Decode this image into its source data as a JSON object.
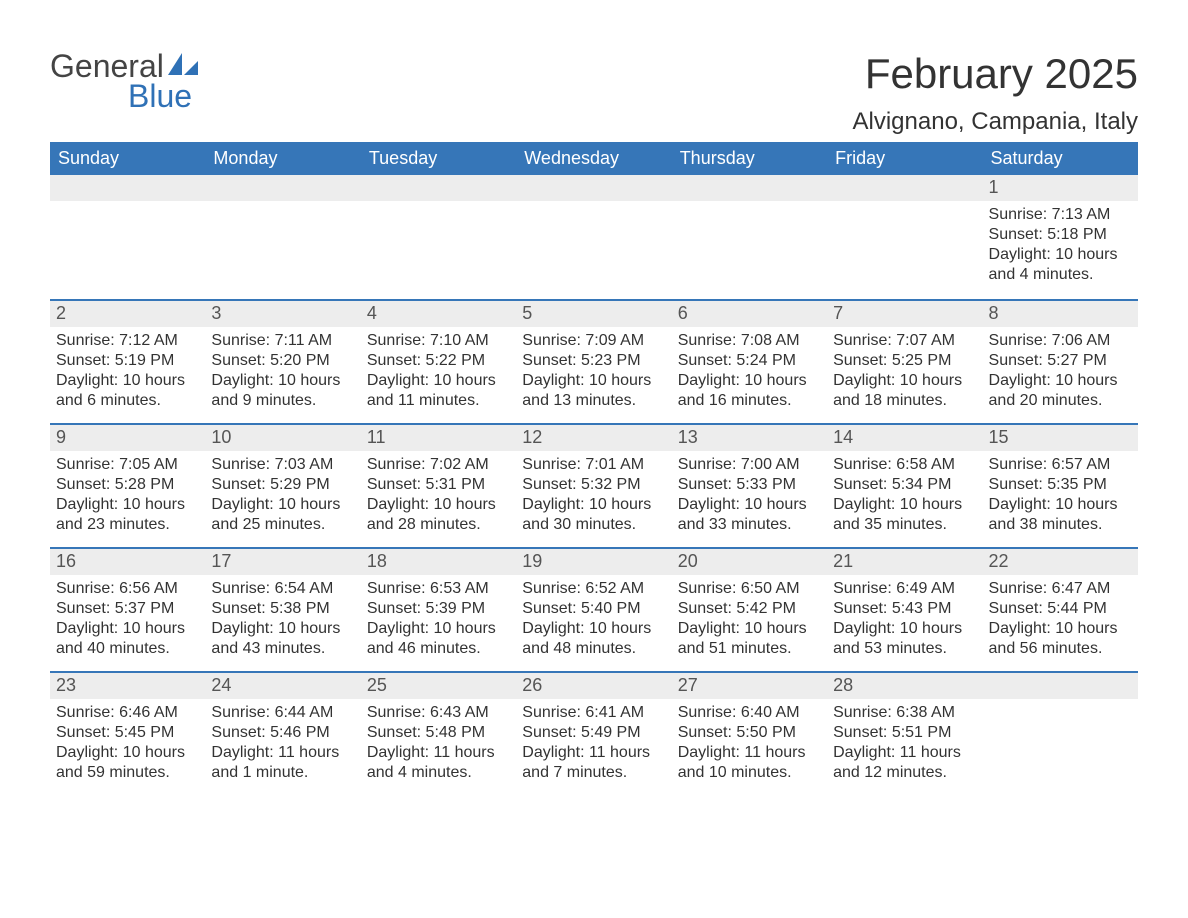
{
  "logo": {
    "text_general": "General",
    "text_blue": "Blue"
  },
  "title": {
    "month_year": "February 2025",
    "location": "Alvignano, Campania, Italy"
  },
  "colors": {
    "header_bg": "#3676b8",
    "header_text": "#ffffff",
    "row_separator": "#3676b8",
    "day_num_bg": "#ededed",
    "body_text": "#333333",
    "logo_gray": "#444444",
    "logo_blue": "#2f71b6",
    "page_bg": "#ffffff"
  },
  "typography": {
    "title_fontsize": 42,
    "location_fontsize": 24,
    "dayheader_fontsize": 18,
    "daynum_fontsize": 18,
    "body_fontsize": 16
  },
  "day_headers": [
    "Sunday",
    "Monday",
    "Tuesday",
    "Wednesday",
    "Thursday",
    "Friday",
    "Saturday"
  ],
  "weeks": [
    [
      null,
      null,
      null,
      null,
      null,
      null,
      {
        "n": "1",
        "sunrise": "Sunrise: 7:13 AM",
        "sunset": "Sunset: 5:18 PM",
        "daylight": "Daylight: 10 hours and 4 minutes."
      }
    ],
    [
      {
        "n": "2",
        "sunrise": "Sunrise: 7:12 AM",
        "sunset": "Sunset: 5:19 PM",
        "daylight": "Daylight: 10 hours and 6 minutes."
      },
      {
        "n": "3",
        "sunrise": "Sunrise: 7:11 AM",
        "sunset": "Sunset: 5:20 PM",
        "daylight": "Daylight: 10 hours and 9 minutes."
      },
      {
        "n": "4",
        "sunrise": "Sunrise: 7:10 AM",
        "sunset": "Sunset: 5:22 PM",
        "daylight": "Daylight: 10 hours and 11 minutes."
      },
      {
        "n": "5",
        "sunrise": "Sunrise: 7:09 AM",
        "sunset": "Sunset: 5:23 PM",
        "daylight": "Daylight: 10 hours and 13 minutes."
      },
      {
        "n": "6",
        "sunrise": "Sunrise: 7:08 AM",
        "sunset": "Sunset: 5:24 PM",
        "daylight": "Daylight: 10 hours and 16 minutes."
      },
      {
        "n": "7",
        "sunrise": "Sunrise: 7:07 AM",
        "sunset": "Sunset: 5:25 PM",
        "daylight": "Daylight: 10 hours and 18 minutes."
      },
      {
        "n": "8",
        "sunrise": "Sunrise: 7:06 AM",
        "sunset": "Sunset: 5:27 PM",
        "daylight": "Daylight: 10 hours and 20 minutes."
      }
    ],
    [
      {
        "n": "9",
        "sunrise": "Sunrise: 7:05 AM",
        "sunset": "Sunset: 5:28 PM",
        "daylight": "Daylight: 10 hours and 23 minutes."
      },
      {
        "n": "10",
        "sunrise": "Sunrise: 7:03 AM",
        "sunset": "Sunset: 5:29 PM",
        "daylight": "Daylight: 10 hours and 25 minutes."
      },
      {
        "n": "11",
        "sunrise": "Sunrise: 7:02 AM",
        "sunset": "Sunset: 5:31 PM",
        "daylight": "Daylight: 10 hours and 28 minutes."
      },
      {
        "n": "12",
        "sunrise": "Sunrise: 7:01 AM",
        "sunset": "Sunset: 5:32 PM",
        "daylight": "Daylight: 10 hours and 30 minutes."
      },
      {
        "n": "13",
        "sunrise": "Sunrise: 7:00 AM",
        "sunset": "Sunset: 5:33 PM",
        "daylight": "Daylight: 10 hours and 33 minutes."
      },
      {
        "n": "14",
        "sunrise": "Sunrise: 6:58 AM",
        "sunset": "Sunset: 5:34 PM",
        "daylight": "Daylight: 10 hours and 35 minutes."
      },
      {
        "n": "15",
        "sunrise": "Sunrise: 6:57 AM",
        "sunset": "Sunset: 5:35 PM",
        "daylight": "Daylight: 10 hours and 38 minutes."
      }
    ],
    [
      {
        "n": "16",
        "sunrise": "Sunrise: 6:56 AM",
        "sunset": "Sunset: 5:37 PM",
        "daylight": "Daylight: 10 hours and 40 minutes."
      },
      {
        "n": "17",
        "sunrise": "Sunrise: 6:54 AM",
        "sunset": "Sunset: 5:38 PM",
        "daylight": "Daylight: 10 hours and 43 minutes."
      },
      {
        "n": "18",
        "sunrise": "Sunrise: 6:53 AM",
        "sunset": "Sunset: 5:39 PM",
        "daylight": "Daylight: 10 hours and 46 minutes."
      },
      {
        "n": "19",
        "sunrise": "Sunrise: 6:52 AM",
        "sunset": "Sunset: 5:40 PM",
        "daylight": "Daylight: 10 hours and 48 minutes."
      },
      {
        "n": "20",
        "sunrise": "Sunrise: 6:50 AM",
        "sunset": "Sunset: 5:42 PM",
        "daylight": "Daylight: 10 hours and 51 minutes."
      },
      {
        "n": "21",
        "sunrise": "Sunrise: 6:49 AM",
        "sunset": "Sunset: 5:43 PM",
        "daylight": "Daylight: 10 hours and 53 minutes."
      },
      {
        "n": "22",
        "sunrise": "Sunrise: 6:47 AM",
        "sunset": "Sunset: 5:44 PM",
        "daylight": "Daylight: 10 hours and 56 minutes."
      }
    ],
    [
      {
        "n": "23",
        "sunrise": "Sunrise: 6:46 AM",
        "sunset": "Sunset: 5:45 PM",
        "daylight": "Daylight: 10 hours and 59 minutes."
      },
      {
        "n": "24",
        "sunrise": "Sunrise: 6:44 AM",
        "sunset": "Sunset: 5:46 PM",
        "daylight": "Daylight: 11 hours and 1 minute."
      },
      {
        "n": "25",
        "sunrise": "Sunrise: 6:43 AM",
        "sunset": "Sunset: 5:48 PM",
        "daylight": "Daylight: 11 hours and 4 minutes."
      },
      {
        "n": "26",
        "sunrise": "Sunrise: 6:41 AM",
        "sunset": "Sunset: 5:49 PM",
        "daylight": "Daylight: 11 hours and 7 minutes."
      },
      {
        "n": "27",
        "sunrise": "Sunrise: 6:40 AM",
        "sunset": "Sunset: 5:50 PM",
        "daylight": "Daylight: 11 hours and 10 minutes."
      },
      {
        "n": "28",
        "sunrise": "Sunrise: 6:38 AM",
        "sunset": "Sunset: 5:51 PM",
        "daylight": "Daylight: 11 hours and 12 minutes."
      },
      null
    ]
  ]
}
